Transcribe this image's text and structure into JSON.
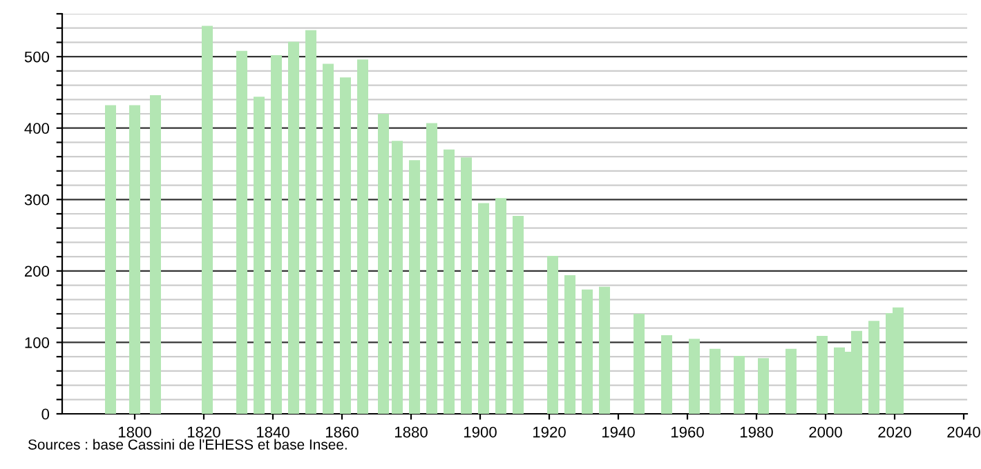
{
  "chart_data": {
    "type": "bar",
    "x": [
      1793,
      1800,
      1806,
      1821,
      1831,
      1836,
      1841,
      1846,
      1851,
      1856,
      1861,
      1866,
      1872,
      1876,
      1881,
      1886,
      1891,
      1896,
      1901,
      1906,
      1911,
      1921,
      1926,
      1931,
      1936,
      1946,
      1954,
      1962,
      1968,
      1975,
      1982,
      1990,
      1999,
      2004,
      2006,
      2009,
      2014,
      2019,
      2021
    ],
    "values": [
      432,
      432,
      446,
      543,
      508,
      444,
      502,
      521,
      537,
      490,
      471,
      496,
      420,
      382,
      355,
      407,
      370,
      359,
      295,
      302,
      277,
      221,
      194,
      174,
      178,
      140,
      110,
      105,
      91,
      81,
      78,
      91,
      109,
      93,
      87,
      116,
      130,
      141,
      149
    ],
    "color": "#b3e6b3",
    "xlim": [
      1779,
      2041
    ],
    "xticks": [
      1800,
      1820,
      1840,
      1860,
      1880,
      1900,
      1920,
      1940,
      1960,
      1980,
      2000,
      2020,
      2040
    ],
    "ylim": [
      0,
      560
    ],
    "yticks": [
      0,
      {
        "value": 20,
        "label": null
      },
      {
        "value": 40,
        "label": null
      },
      {
        "value": 60,
        "label": null
      },
      {
        "value": 80,
        "label": null
      },
      100,
      {
        "value": 120,
        "label": null
      },
      {
        "value": 140,
        "label": null
      },
      {
        "value": 160,
        "label": null
      },
      {
        "value": 180,
        "label": null
      },
      200,
      {
        "value": 220,
        "label": null
      },
      {
        "value": 240,
        "label": null
      },
      {
        "value": 260,
        "label": null
      },
      {
        "value": 280,
        "label": null
      },
      300,
      {
        "value": 320,
        "label": null
      },
      {
        "value": 340,
        "label": null
      },
      {
        "value": 360,
        "label": null
      },
      {
        "value": 380,
        "label": null
      },
      400,
      {
        "value": 420,
        "label": null
      },
      {
        "value": 440,
        "label": null
      },
      {
        "value": 460,
        "label": null
      },
      {
        "value": 480,
        "label": null
      },
      500,
      {
        "value": 520,
        "label": null
      },
      {
        "value": 540,
        "label": null
      },
      {
        "value": 560,
        "label": null
      }
    ],
    "grid": "y",
    "annotations": [
      "Sources : base Cassini de l'EHESS et base Insee."
    ]
  }
}
